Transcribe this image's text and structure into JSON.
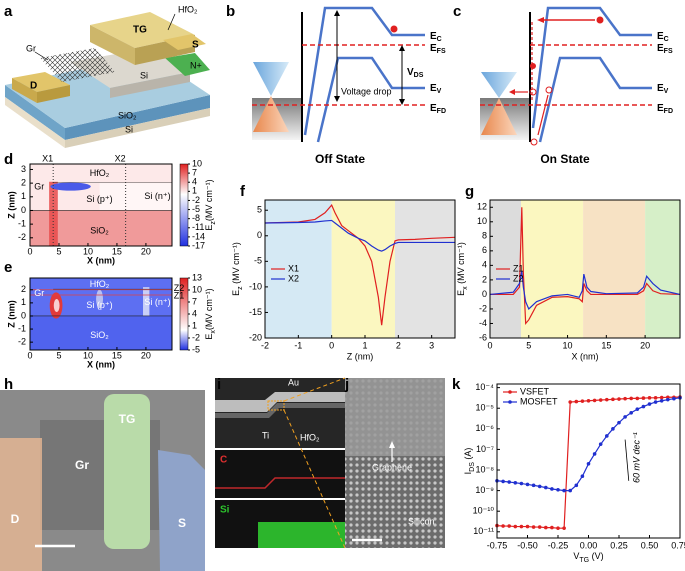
{
  "panel_labels": [
    "a",
    "b",
    "c",
    "d",
    "e",
    "f",
    "g",
    "h",
    "i",
    "j",
    "k"
  ],
  "a": {
    "tg": "TG",
    "hfo2": "HfO₂",
    "gr": "Gr",
    "s": "S",
    "n": "N+",
    "si_top": "Si",
    "d": "D",
    "sio2": "SiO₂",
    "si_bottom": "Si"
  },
  "b": {
    "ec": {
      "main": "E",
      "sub": "C"
    },
    "efs": {
      "main": "E",
      "sub": "FS"
    },
    "vds": {
      "main": "V",
      "sub": "DS"
    },
    "ev": {
      "main": "E",
      "sub": "V"
    },
    "efd": {
      "main": "E",
      "sub": "FD"
    },
    "voltage_drop": "Voltage drop",
    "state": "Off State"
  },
  "c": {
    "ec": {
      "main": "E",
      "sub": "C"
    },
    "efs": {
      "main": "E",
      "sub": "FS"
    },
    "ev": {
      "main": "E",
      "sub": "V"
    },
    "efd": {
      "main": "E",
      "sub": "FD"
    },
    "state": "On State"
  },
  "d": {
    "xlim": [
      0,
      24.5
    ],
    "ylim": [
      -2.6,
      3.4
    ],
    "xticks": [
      0,
      5,
      10,
      15,
      20
    ],
    "yticks": [
      -2,
      -1,
      0,
      1,
      2,
      3
    ],
    "xlabel": "X (nm)",
    "ylabel": "Z (nm)",
    "clim": [
      -17,
      10
    ],
    "cticks": [
      10,
      7,
      4,
      1,
      -2,
      -5,
      -8,
      -11,
      -14,
      -17
    ],
    "clabel": {
      "main": "E",
      "sub": "z",
      "rest": "(MV cm⁻¹)"
    },
    "texts": {
      "x1": "X1",
      "x2": "X2",
      "hfo2": "HfO₂",
      "gr": "Gr",
      "sip": "Si (p⁺)",
      "sin": "Si (n⁺)",
      "sio2": "SiO₂"
    }
  },
  "e": {
    "xlim": [
      0,
      24.5
    ],
    "ylim": [
      -2.6,
      2.9
    ],
    "xticks": [
      0,
      5,
      10,
      15,
      20
    ],
    "yticks": [
      -2,
      -1,
      0,
      1,
      2
    ],
    "xlabel": "X (nm)",
    "ylabel": "Z (nm)",
    "clim": [
      -5,
      13
    ],
    "cticks": [
      13,
      10,
      7,
      4,
      1,
      -2,
      -5
    ],
    "clabel": {
      "main": "E",
      "sub": "x",
      "rest": "(MV cm⁻¹)"
    },
    "texts": {
      "gr": "Gr",
      "hfo2": "HfO₂",
      "sip": "Si (p⁺)",
      "sin": "Si (n⁺)",
      "sio2": "SiO₂",
      "z2": "Z2",
      "z1": "Z1"
    }
  },
  "chart_data": [
    {
      "type": "line",
      "xlabel": "Z (nm)",
      "ylabel": {
        "main": "E",
        "sub": "z",
        "rest": " (MV cm⁻¹)"
      },
      "xlim": [
        -2,
        3.7
      ],
      "ylim": [
        -20,
        7
      ],
      "xticks": [
        -2,
        -1,
        0,
        1,
        2,
        3
      ],
      "yticks": [
        -20,
        -15,
        -10,
        -5,
        0,
        5
      ],
      "legend": "center left",
      "regions": [
        {
          "from": -2,
          "to": 0,
          "color": "#d5e9f4"
        },
        {
          "from": 0,
          "to": 1.9,
          "color": "#fbf7c0"
        },
        {
          "from": 1.9,
          "to": 3.7,
          "color": "#e3e3e3"
        }
      ],
      "x": [
        -2,
        -1,
        -0.5,
        -0.2,
        0,
        0.1,
        0.3,
        0.5,
        0.8,
        1,
        1.2,
        1.4,
        1.5,
        1.6,
        1.75,
        1.9,
        2,
        2.5,
        3,
        3.7
      ],
      "series": [
        {
          "name": "X1",
          "color": "#e02020",
          "values": [
            2.5,
            2.7,
            3.2,
            4.5,
            6,
            4.5,
            2,
            1,
            -0.5,
            -2,
            -5,
            -12,
            -17.5,
            -12,
            -5,
            -1,
            -0.8,
            -0.7,
            -0.5,
            -0.3
          ]
        },
        {
          "name": "X2",
          "color": "#2030d0",
          "values": [
            2.5,
            2.6,
            2.7,
            2.9,
            3,
            2.5,
            1.5,
            0.5,
            -0.5,
            -1,
            -2,
            -2.8,
            -3,
            -2.7,
            -2,
            -1.5,
            -1.3,
            -1.3,
            -1.3,
            -1.3
          ]
        }
      ]
    },
    {
      "type": "line",
      "xlabel": "X (nm)",
      "ylabel": {
        "main": "E",
        "sub": "x",
        "rest": " (MV cm⁻¹)"
      },
      "xlim": [
        0,
        24.5
      ],
      "ylim": [
        -6,
        13
      ],
      "xticks": [
        0,
        5,
        10,
        15,
        20
      ],
      "yticks": [
        -6,
        -4,
        -2,
        0,
        2,
        4,
        6,
        8,
        10,
        12
      ],
      "legend": "center left",
      "regions": [
        {
          "from": 0,
          "to": 4,
          "color": "#dcdcdc"
        },
        {
          "from": 4,
          "to": 12,
          "color": "#fbf7c0"
        },
        {
          "from": 12,
          "to": 20,
          "color": "#f7e2c4"
        },
        {
          "from": 20,
          "to": 24.5,
          "color": "#d6efc8"
        }
      ],
      "x": [
        0,
        3,
        3.8,
        4.1,
        4.3,
        4.6,
        5,
        6,
        8,
        10,
        11.5,
        11.9,
        12.1,
        12.5,
        13,
        15,
        19,
        19.8,
        20.2,
        21,
        22,
        24.5
      ],
      "series": [
        {
          "name": "Z1",
          "color": "#e02020",
          "values": [
            0,
            0,
            1,
            12,
            3,
            -4,
            -3.5,
            -1.5,
            -0.4,
            -0.3,
            -0.6,
            -1,
            1.5,
            0.5,
            0,
            0,
            0,
            0.5,
            1.5,
            0.5,
            0.1,
            0
          ]
        },
        {
          "name": "Z2",
          "color": "#2030d0",
          "values": [
            0,
            0.3,
            1.5,
            3.2,
            1,
            -1,
            -2,
            -1,
            -0.2,
            0,
            -0.4,
            0.5,
            2.8,
            1,
            0.4,
            0.1,
            0.2,
            1,
            2.5,
            1.5,
            0.6,
            0
          ]
        }
      ]
    },
    {
      "type": "line",
      "log_y": true,
      "markers": true,
      "xlabel": {
        "main": "V",
        "sub": "TG",
        "rest": " (V)"
      },
      "ylabel": {
        "main": "I",
        "sub": "DS",
        "rest": " (A)"
      },
      "xlim": [
        -0.75,
        0.75
      ],
      "ylim": [
        5e-12,
        0.00015
      ],
      "xticks": [
        -0.75,
        {
          "value": -0.5,
          "label": "-0.50"
        },
        -0.25,
        {
          "value": 0,
          "label": "0.00"
        },
        0.25,
        {
          "value": 0.5,
          "label": "0.50"
        },
        0.75
      ],
      "yticks": [
        {
          "value": 1e-11,
          "label": "10⁻¹¹"
        },
        {
          "value": 1e-10,
          "label": "10⁻¹⁰"
        },
        {
          "value": 1e-09,
          "label": "10⁻⁹"
        },
        {
          "value": 1e-08,
          "label": "10⁻⁸"
        },
        {
          "value": 1e-07,
          "label": "10⁻⁷"
        },
        {
          "value": 1e-06,
          "label": "10⁻⁶"
        },
        {
          "value": 1e-05,
          "label": "10⁻⁵"
        },
        {
          "value": 0.0001,
          "label": "10⁻⁴"
        }
      ],
      "legend": "upper left",
      "annotation": "60 mV dec⁻¹",
      "x": [
        -0.75,
        -0.7,
        -0.65,
        -0.6,
        -0.55,
        -0.5,
        -0.45,
        -0.4,
        -0.35,
        -0.3,
        -0.25,
        -0.2,
        -0.15,
        -0.1,
        -0.05,
        0,
        0.05,
        0.1,
        0.15,
        0.2,
        0.25,
        0.3,
        0.35,
        0.4,
        0.45,
        0.5,
        0.55,
        0.6,
        0.65,
        0.7,
        0.75
      ],
      "series": [
        {
          "name": "VSFET",
          "color": "#e02020",
          "values": [
            2e-11,
            1.9e-11,
            1.9e-11,
            1.8e-11,
            1.8e-11,
            1.8e-11,
            1.7e-11,
            1.7e-11,
            1.6e-11,
            1.6e-11,
            1.5e-11,
            1.5e-11,
            2e-05,
            2.1e-05,
            2.2e-05,
            2.3e-05,
            2.4e-05,
            2.5e-05,
            2.6e-05,
            2.7e-05,
            2.8e-05,
            2.9e-05,
            3e-05,
            3e-05,
            3.1e-05,
            3.2e-05,
            3.2e-05,
            3.3e-05,
            3.4e-05,
            3.4e-05,
            3.5e-05
          ]
        },
        {
          "name": "MOSFET",
          "color": "#2030d0",
          "values": [
            3e-09,
            2.8e-09,
            2.6e-09,
            2.4e-09,
            2.2e-09,
            2e-09,
            1.8e-09,
            1.6e-09,
            1.4e-09,
            1.2e-09,
            1.1e-09,
            1e-09,
            1e-09,
            1.8e-09,
            5e-09,
            2e-08,
            6e-08,
            1.8e-07,
            4.5e-07,
            1e-06,
            2e-06,
            3.8e-06,
            6e-06,
            9e-06,
            1.2e-05,
            1.6e-05,
            2e-05,
            2.3e-05,
            2.6e-05,
            2.9e-05,
            3.2e-05
          ]
        }
      ]
    }
  ],
  "h": {
    "tg": "TG",
    "gr": "Gr",
    "d": "D",
    "s": "S"
  },
  "i": {
    "au": "Au",
    "ti": "Ti",
    "hfo2": "HfO₂",
    "c": "C",
    "si": "Si"
  },
  "j": {
    "graphene": "Graphene",
    "silicon": "Silicon"
  }
}
